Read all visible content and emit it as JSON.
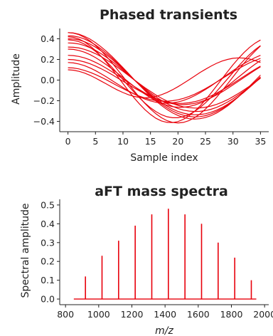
{
  "chart_data": [
    {
      "type": "line",
      "title": "Phased transients",
      "xlabel": "Sample index",
      "ylabel": "Amplitude",
      "xlim": [
        -1.5,
        36.5
      ],
      "ylim": [
        -0.5,
        0.5
      ],
      "xticks": [
        0,
        5,
        10,
        15,
        20,
        25,
        30,
        35
      ],
      "yticks": [
        -0.4,
        -0.2,
        0.0,
        0.2,
        0.4
      ],
      "ytick_labels": [
        "−0.4",
        "−0.2",
        "0.0",
        "0.2",
        "0.4"
      ],
      "color": "#e8000b",
      "x": [
        0,
        1,
        2,
        3,
        4,
        5,
        6,
        7,
        8,
        9,
        10,
        11,
        12,
        13,
        14,
        15,
        16,
        17,
        18,
        19,
        20,
        21,
        22,
        23,
        24,
        25,
        26,
        27,
        28,
        29,
        30,
        31,
        32,
        33,
        34,
        35
      ],
      "series": [
        {
          "values": [
            0.46,
            0.456,
            0.444,
            0.424,
            0.397,
            0.363,
            0.323,
            0.278,
            0.229,
            0.176,
            0.121,
            0.064,
            0.007,
            -0.049,
            -0.103,
            -0.155,
            -0.203,
            -0.246,
            -0.285,
            -0.317,
            -0.343,
            -0.362,
            -0.374,
            -0.378,
            -0.374,
            -0.363,
            -0.345,
            -0.319,
            -0.288,
            -0.251,
            -0.208,
            -0.162,
            -0.112,
            -0.06,
            -0.006,
            0.048
          ]
        },
        {
          "values": [
            0.43,
            0.427,
            0.416,
            0.398,
            0.372,
            0.341,
            0.303,
            0.261,
            0.215,
            0.165,
            0.113,
            0.06,
            0.006,
            -0.046,
            -0.097,
            -0.146,
            -0.191,
            -0.232,
            -0.268,
            -0.299,
            -0.323,
            -0.341,
            -0.352,
            -0.357,
            -0.354,
            -0.345,
            -0.328,
            -0.305,
            -0.277,
            -0.243,
            -0.204,
            -0.161,
            -0.115,
            -0.067,
            -0.018,
            0.032
          ]
        },
        {
          "values": [
            0.4,
            0.398,
            0.389,
            0.372,
            0.349,
            0.319,
            0.285,
            0.245,
            0.202,
            0.155,
            0.106,
            0.056,
            0.005,
            -0.044,
            -0.092,
            -0.137,
            -0.18,
            -0.218,
            -0.252,
            -0.281,
            -0.304,
            -0.321,
            -0.332,
            -0.336,
            -0.334,
            -0.326,
            -0.312,
            -0.292,
            -0.266,
            -0.235,
            -0.199,
            -0.16,
            -0.117,
            -0.072,
            -0.025,
            0.023
          ]
        },
        {
          "values": [
            0.36,
            0.358,
            0.35,
            0.335,
            0.314,
            0.288,
            0.257,
            0.221,
            0.182,
            0.14,
            0.096,
            0.051,
            0.005,
            -0.04,
            -0.083,
            -0.124,
            -0.163,
            -0.197,
            -0.228,
            -0.254,
            -0.275,
            -0.291,
            -0.3,
            -0.304,
            -0.303,
            -0.296,
            -0.283,
            -0.265,
            -0.241,
            -0.213,
            -0.181,
            -0.145,
            -0.107,
            -0.066,
            -0.023,
            0.021
          ]
        },
        {
          "values": [
            0.32,
            0.318,
            0.311,
            0.298,
            0.279,
            0.256,
            0.228,
            0.196,
            0.162,
            0.124,
            0.085,
            0.045,
            0.004,
            -0.035,
            -0.074,
            -0.11,
            -0.145,
            -0.176,
            -0.203,
            -0.226,
            -0.245,
            -0.259,
            -0.267,
            -0.271,
            -0.27,
            -0.263,
            -0.252,
            -0.236,
            -0.215,
            -0.19,
            -0.161,
            -0.13,
            -0.095,
            -0.059,
            -0.021,
            0.018
          ]
        },
        {
          "values": [
            0.3,
            0.297,
            0.287,
            0.27,
            0.247,
            0.218,
            0.185,
            0.148,
            0.108,
            0.067,
            0.024,
            -0.018,
            -0.06,
            -0.099,
            -0.136,
            -0.17,
            -0.2,
            -0.225,
            -0.244,
            -0.257,
            -0.263,
            -0.263,
            -0.256,
            -0.243,
            -0.224,
            -0.2,
            -0.17,
            -0.136,
            -0.098,
            -0.058,
            -0.015,
            0.028,
            0.072,
            0.114,
            0.153,
            0.19
          ]
        },
        {
          "values": [
            0.24,
            0.237,
            0.229,
            0.215,
            0.196,
            0.172,
            0.145,
            0.114,
            0.081,
            0.046,
            0.011,
            -0.025,
            -0.06,
            -0.093,
            -0.125,
            -0.153,
            -0.178,
            -0.2,
            -0.217,
            -0.229,
            -0.236,
            -0.238,
            -0.234,
            -0.226,
            -0.212,
            -0.194,
            -0.171,
            -0.145,
            -0.115,
            -0.082,
            -0.047,
            -0.011,
            0.025,
            0.061,
            0.096,
            0.128
          ]
        },
        {
          "values": [
            0.2,
            0.197,
            0.189,
            0.176,
            0.158,
            0.136,
            0.111,
            0.083,
            0.053,
            0.021,
            -0.011,
            -0.043,
            -0.075,
            -0.105,
            -0.133,
            -0.158,
            -0.18,
            -0.198,
            -0.212,
            -0.221,
            -0.226,
            -0.225,
            -0.22,
            -0.21,
            -0.195,
            -0.176,
            -0.153,
            -0.127,
            -0.098,
            -0.066,
            -0.033,
            0.002,
            0.036,
            0.071,
            0.104,
            0.135
          ]
        },
        {
          "values": [
            0.17,
            0.166,
            0.156,
            0.14,
            0.118,
            0.092,
            0.062,
            0.03,
            -0.004,
            -0.038,
            -0.072,
            -0.104,
            -0.134,
            -0.161,
            -0.184,
            -0.202,
            -0.215,
            -0.223,
            -0.225,
            -0.221,
            -0.212,
            -0.197,
            -0.177,
            -0.152,
            -0.123,
            -0.091,
            -0.057,
            -0.02,
            0.017,
            0.055,
            0.091,
            0.127,
            0.16,
            0.19,
            0.217,
            0.24
          ]
        },
        {
          "values": [
            0.12,
            0.117,
            0.108,
            0.094,
            0.076,
            0.054,
            0.029,
            0.002,
            -0.026,
            -0.055,
            -0.083,
            -0.109,
            -0.134,
            -0.156,
            -0.174,
            -0.189,
            -0.199,
            -0.204,
            -0.205,
            -0.2,
            -0.191,
            -0.177,
            -0.159,
            -0.137,
            -0.111,
            -0.083,
            -0.052,
            -0.02,
            0.013,
            0.046,
            0.079,
            0.11,
            0.14,
            0.167,
            0.19,
            0.21
          ]
        },
        {
          "values": [
            0.1,
            0.096,
            0.085,
            0.068,
            0.046,
            0.02,
            -0.009,
            -0.038,
            -0.068,
            -0.096,
            -0.121,
            -0.142,
            -0.158,
            -0.168,
            -0.171,
            -0.168,
            -0.158,
            -0.142,
            -0.12,
            -0.094,
            -0.064,
            -0.031,
            0.003,
            0.038,
            0.073,
            0.105,
            0.135,
            0.162,
            0.184,
            0.2,
            0.211,
            0.215,
            0.213,
            0.205,
            0.19,
            0.17
          ]
        },
        {
          "values": [
            0.46,
            0.455,
            0.44,
            0.414,
            0.379,
            0.336,
            0.286,
            0.229,
            0.168,
            0.102,
            0.034,
            -0.035,
            -0.102,
            -0.167,
            -0.227,
            -0.281,
            -0.327,
            -0.365,
            -0.393,
            -0.41,
            -0.416,
            -0.41,
            -0.393,
            -0.365,
            -0.328,
            -0.281,
            -0.227,
            -0.168,
            -0.104,
            -0.038,
            0.03,
            0.098,
            0.163,
            0.224,
            0.28,
            0.33
          ]
        },
        {
          "values": [
            0.39,
            0.385,
            0.372,
            0.349,
            0.317,
            0.278,
            0.232,
            0.18,
            0.124,
            0.065,
            0.004,
            -0.057,
            -0.116,
            -0.172,
            -0.223,
            -0.268,
            -0.306,
            -0.335,
            -0.355,
            -0.365,
            -0.365,
            -0.354,
            -0.334,
            -0.304,
            -0.266,
            -0.22,
            -0.168,
            -0.111,
            -0.05,
            0.012,
            0.074,
            0.135,
            0.193,
            0.246,
            0.294,
            0.334
          ]
        },
        {
          "values": [
            0.42,
            0.414,
            0.398,
            0.37,
            0.332,
            0.286,
            0.232,
            0.171,
            0.105,
            0.036,
            -0.034,
            -0.104,
            -0.17,
            -0.232,
            -0.287,
            -0.333,
            -0.37,
            -0.396,
            -0.41,
            -0.412,
            -0.402,
            -0.38,
            -0.347,
            -0.303,
            -0.251,
            -0.191,
            -0.126,
            -0.058,
            0.012,
            0.081,
            0.148,
            0.21,
            0.267,
            0.316,
            0.357,
            0.388
          ]
        }
      ]
    },
    {
      "type": "bar",
      "title": "aFT mass spectra",
      "xlabel": "m/z",
      "ylabel": "Spectral amplitude",
      "xlim": [
        765,
        2025
      ],
      "ylim": [
        -0.03,
        0.53
      ],
      "xticks": [
        800,
        1000,
        1200,
        1400,
        1600,
        1800,
        2000
      ],
      "yticks": [
        0.0,
        0.1,
        0.2,
        0.3,
        0.4,
        0.5
      ],
      "color": "#e8000b",
      "baseline_x": [
        850,
        1950
      ],
      "x": [
        920,
        1020,
        1120,
        1220,
        1320,
        1420,
        1520,
        1620,
        1720,
        1820,
        1920
      ],
      "values": [
        0.12,
        0.23,
        0.31,
        0.39,
        0.45,
        0.48,
        0.45,
        0.4,
        0.3,
        0.22,
        0.1
      ]
    }
  ]
}
